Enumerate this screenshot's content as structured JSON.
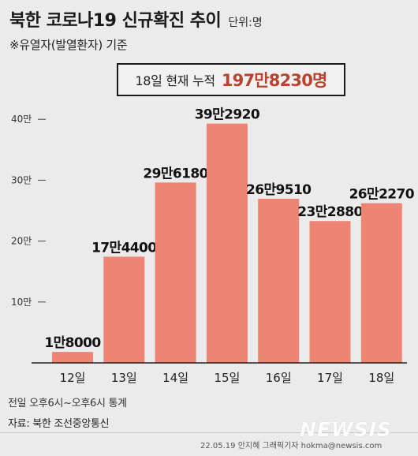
{
  "header": {
    "title": "북한 코로나19 신규확진 추이",
    "unit": "단위:명",
    "subtitle": "※유열자(발열환자) 기준"
  },
  "summary": {
    "label": "18일 현재 누적",
    "value": "197만8230명"
  },
  "chart_data": {
    "type": "bar",
    "categories": [
      "12일",
      "13일",
      "14일",
      "15일",
      "16일",
      "17일",
      "18일"
    ],
    "values": [
      18000,
      174400,
      296180,
      392920,
      269510,
      232880,
      262270
    ],
    "value_labels": [
      "1만8000",
      "17만4400",
      "29만6180",
      "39만2920",
      "26만9510",
      "23만2880",
      "26만2270"
    ],
    "ylim": [
      0,
      450000
    ],
    "yticks": [
      100000,
      200000,
      300000,
      400000
    ],
    "ytick_labels": [
      "10만",
      "20만",
      "30만",
      "40만"
    ],
    "bar_color": "#ee8474",
    "grid": false
  },
  "footer": {
    "note": "전일 오후6시~오후6시 통계",
    "source": "자료: 북한 조선중앙통신",
    "credit": "22.05.19 안지혜 그래픽기자 hokma@newsis.com",
    "logo": "NEWSIS"
  }
}
